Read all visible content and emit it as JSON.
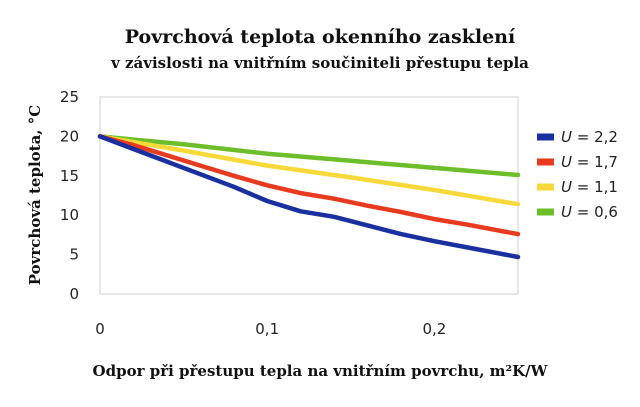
{
  "chart_data": {
    "type": "line",
    "title": "Povrchová teplota okenního zasklení",
    "subtitle": "v závislosti na vnitřním součiniteli přestupu tepla",
    "xlabel": "Odpor při přestupu tepla na vnitřním povrchu, m²K/W",
    "ylabel": "Povrchová teplota, °C",
    "xlim": [
      0,
      0.25
    ],
    "ylim": [
      0,
      25
    ],
    "xticks": [
      0,
      0.1,
      0.2
    ],
    "xtick_labels": [
      "0",
      "0,1",
      "0,2"
    ],
    "yticks": [
      0,
      5,
      10,
      15,
      20,
      25
    ],
    "ytick_labels": [
      "0",
      "5",
      "10",
      "15",
      "20",
      "25"
    ],
    "grid": false,
    "legend_position": "right",
    "series": [
      {
        "name": "U = 2,2",
        "u_symbol": "U",
        "u_value": "= 2,2",
        "color": "#1a2fa0",
        "x": [
          0,
          0.02,
          0.04,
          0.06,
          0.08,
          0.1,
          0.12,
          0.14,
          0.16,
          0.18,
          0.2,
          0.22,
          0.25
        ],
        "y": [
          20,
          18.4,
          16.8,
          15.2,
          13.6,
          11.8,
          10.5,
          9.8,
          8.7,
          7.6,
          6.7,
          5.9,
          4.7
        ]
      },
      {
        "name": "U = 1,7",
        "u_symbol": "U",
        "u_value": "= 1,7",
        "color": "#e83a1e",
        "x": [
          0,
          0.02,
          0.04,
          0.06,
          0.08,
          0.1,
          0.12,
          0.14,
          0.16,
          0.18,
          0.2,
          0.22,
          0.25
        ],
        "y": [
          20,
          18.9,
          17.6,
          16.3,
          15.0,
          13.8,
          12.8,
          12.1,
          11.2,
          10.4,
          9.5,
          8.8,
          7.6
        ]
      },
      {
        "name": "U = 1,1",
        "u_symbol": "U",
        "u_value": "= 1,1",
        "color": "#f7d93a",
        "x": [
          0,
          0.05,
          0.1,
          0.15,
          0.2,
          0.25
        ],
        "y": [
          20,
          18.2,
          16.3,
          14.8,
          13.2,
          11.4
        ]
      },
      {
        "name": "U = 0,6",
        "u_symbol": "U",
        "u_value": "= 0,6",
        "color": "#6cbf2a",
        "x": [
          0,
          0.05,
          0.1,
          0.15,
          0.2,
          0.25
        ],
        "y": [
          20,
          19.0,
          17.8,
          16.9,
          16.0,
          15.1
        ]
      }
    ]
  }
}
